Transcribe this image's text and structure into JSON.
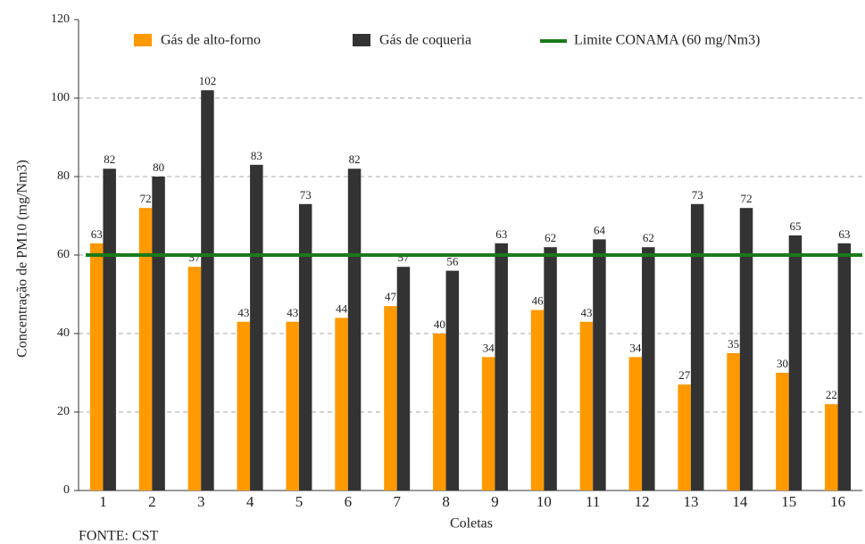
{
  "chart_data": {
    "type": "bar",
    "categories": [
      "1",
      "2",
      "3",
      "4",
      "5",
      "6",
      "7",
      "8",
      "9",
      "10",
      "11",
      "12",
      "13",
      "14",
      "15",
      "16"
    ],
    "series": [
      {
        "name": "Gás de alto-forno",
        "color": "#ff9900",
        "values": [
          63,
          72,
          57,
          43,
          43,
          44,
          47,
          40,
          34,
          46,
          43,
          34,
          27,
          35,
          30,
          22
        ]
      },
      {
        "name": "Gás de coqueria",
        "color": "#333333",
        "values": [
          82,
          80,
          102,
          83,
          73,
          82,
          57,
          56,
          63,
          62,
          64,
          62,
          73,
          72,
          65,
          63
        ]
      }
    ],
    "limit": {
      "name": "Limite CONAMA (60 mg/Nm3)",
      "value": 60,
      "color": "#1a7a1a"
    },
    "x_label": "Coletas",
    "y_label": "Concentração de PM10 (mg/Nm3)",
    "source": "FONTE: CST",
    "ylim": [
      0,
      120
    ],
    "yticks": [
      0,
      20,
      40,
      60,
      80,
      100,
      120
    ],
    "grid": true
  }
}
